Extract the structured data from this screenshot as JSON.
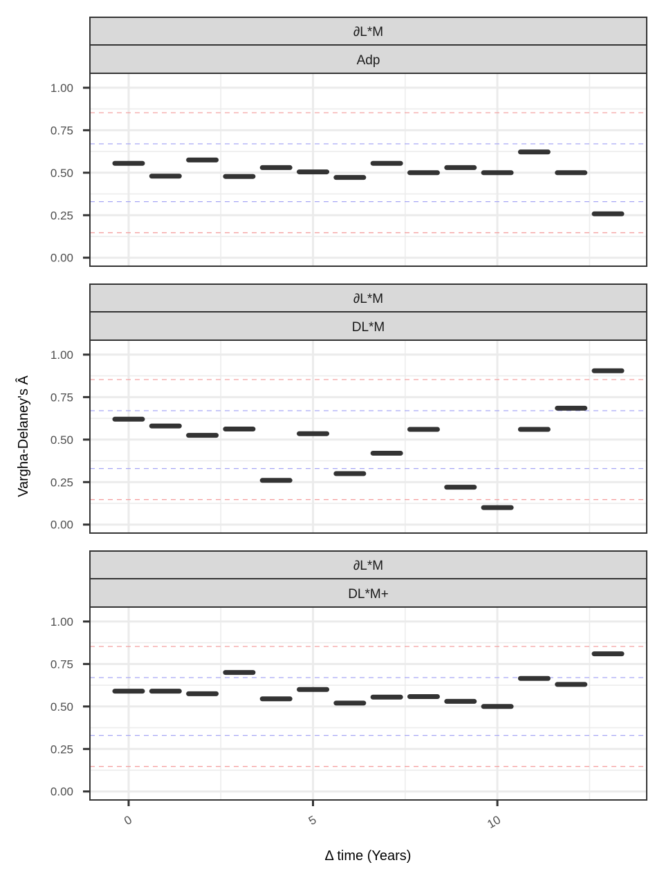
{
  "chart_data": {
    "type": "scatter",
    "marker": "horizontal-bar",
    "xlabel": "Δ time (Years)",
    "ylabel": "Vargha-Delaney's Â",
    "xlim": [
      -1.05,
      14.05
    ],
    "ylim": [
      -0.05,
      1.0
    ],
    "x_ticks": [
      0,
      5,
      10
    ],
    "x_tick_labels": [
      "0",
      "5",
      "10"
    ],
    "y_ticks": [
      0.0,
      0.25,
      0.5,
      0.75,
      1.0
    ],
    "y_tick_labels": [
      "0.00",
      "0.25",
      "0.50",
      "0.75",
      "1.00"
    ],
    "reference_lines": [
      {
        "value": 0.147,
        "color": "#f4a0a0"
      },
      {
        "value": 0.853,
        "color": "#f4a0a0"
      },
      {
        "value": 0.33,
        "color": "#a6a6f5"
      },
      {
        "value": 0.67,
        "color": "#a6a6f5"
      }
    ],
    "x": [
      0,
      1,
      2,
      3,
      4,
      5,
      6,
      7,
      8,
      9,
      10,
      11,
      12,
      13
    ],
    "panels": [
      {
        "strip_top": "∂L*M",
        "strip_bottom": "Adp",
        "values": [
          0.555,
          0.48,
          0.575,
          0.478,
          0.53,
          0.505,
          0.472,
          0.555,
          0.5,
          0.53,
          0.5,
          0.622,
          0.5,
          0.258
        ]
      },
      {
        "strip_top": "∂L*M",
        "strip_bottom": "DL*M",
        "values": [
          0.62,
          0.58,
          0.525,
          0.562,
          0.26,
          0.535,
          0.3,
          0.42,
          0.56,
          0.22,
          0.1,
          0.56,
          0.685,
          0.905
        ]
      },
      {
        "strip_top": "∂L*M",
        "strip_bottom": "DL*M+",
        "values": [
          0.59,
          0.59,
          0.575,
          0.7,
          0.545,
          0.6,
          0.52,
          0.555,
          0.558,
          0.53,
          0.5,
          0.665,
          0.63,
          0.81
        ]
      }
    ]
  }
}
